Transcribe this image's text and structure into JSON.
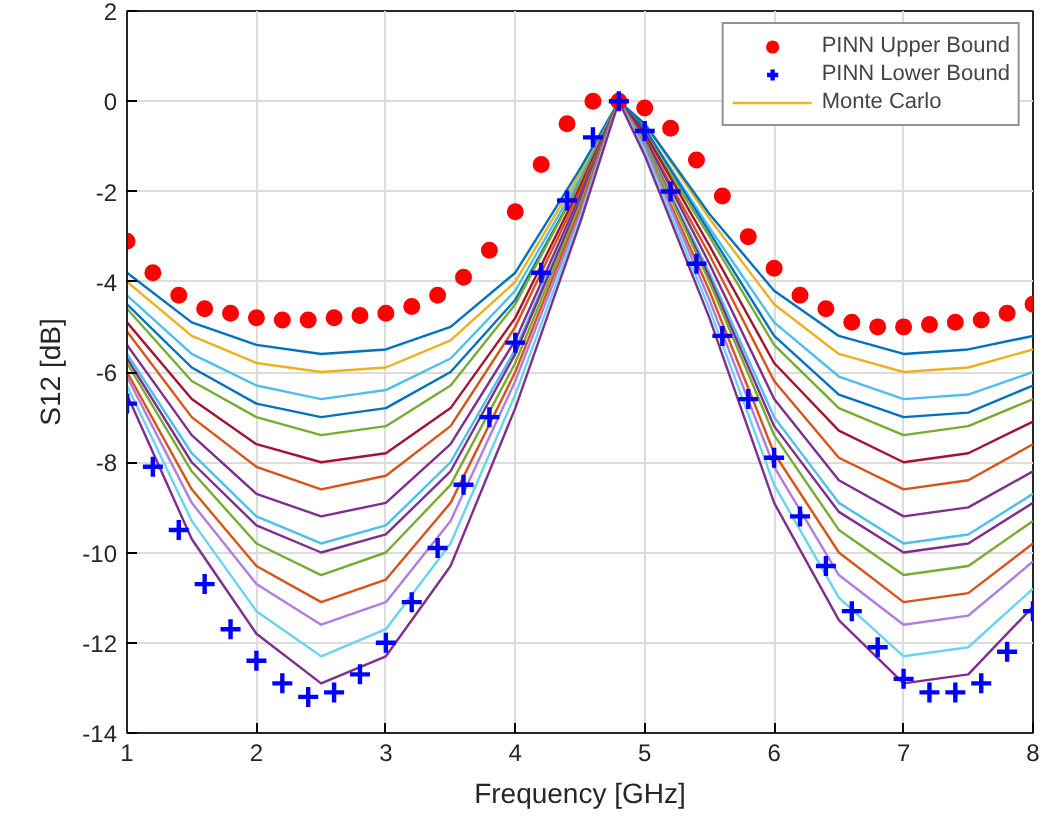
{
  "chart_data": {
    "type": "line",
    "xlabel": "Frequency [GHz]",
    "ylabel": "S12 [dB]",
    "xlim": [
      1,
      8
    ],
    "ylim": [
      -14,
      2
    ],
    "xticks": [
      1,
      2,
      3,
      4,
      5,
      6,
      7,
      8
    ],
    "yticks": [
      -14,
      -12,
      -10,
      -8,
      -6,
      -4,
      -2,
      0,
      2
    ],
    "grid": true,
    "legend": "top right",
    "marker": "none",
    "line_style": "solid",
    "x": [
      1,
      1.5,
      2,
      2.5,
      3,
      3.5,
      4,
      4.5,
      4.8,
      5,
      5.5,
      6,
      6.5,
      7,
      7.5,
      8
    ],
    "series": [
      {
        "name": "Monte Carlo",
        "color": "#edb120",
        "values": [
          -4.0,
          -5.2,
          -5.8,
          -6.0,
          -5.9,
          -5.3,
          -4.0,
          -1.6,
          0,
          -0.5,
          -2.6,
          -4.5,
          -5.6,
          -6.0,
          -5.9,
          -5.5
        ]
      },
      {
        "color": "#0072bd",
        "values": [
          -3.8,
          -4.9,
          -5.4,
          -5.6,
          -5.5,
          -5.0,
          -3.8,
          -1.5,
          0,
          -0.5,
          -2.5,
          -4.2,
          -5.2,
          -5.6,
          -5.5,
          -5.2
        ]
      },
      {
        "color": "#4dbeee",
        "values": [
          -4.3,
          -5.6,
          -6.3,
          -6.6,
          -6.4,
          -5.7,
          -4.2,
          -1.7,
          0,
          -0.6,
          -2.8,
          -4.9,
          -6.1,
          -6.6,
          -6.5,
          -6.0
        ]
      },
      {
        "color": "#0072bd",
        "values": [
          -4.5,
          -5.9,
          -6.7,
          -7.0,
          -6.8,
          -6.0,
          -4.4,
          -1.8,
          0,
          -0.6,
          -2.9,
          -5.2,
          -6.5,
          -7.0,
          -6.9,
          -6.3
        ]
      },
      {
        "color": "#77ac30",
        "values": [
          -4.6,
          -6.2,
          -7.0,
          -7.4,
          -7.2,
          -6.3,
          -4.5,
          -1.8,
          0,
          -0.7,
          -3.0,
          -5.4,
          -6.8,
          -7.4,
          -7.2,
          -6.6
        ]
      },
      {
        "color": "#a2142f",
        "values": [
          -4.9,
          -6.6,
          -7.6,
          -8.0,
          -7.8,
          -6.8,
          -4.8,
          -1.9,
          0,
          -0.7,
          -3.2,
          -5.8,
          -7.3,
          -8.0,
          -7.8,
          -7.1
        ]
      },
      {
        "color": "#d95319",
        "values": [
          -5.1,
          -7.0,
          -8.1,
          -8.6,
          -8.3,
          -7.2,
          -5.0,
          -2.0,
          0,
          -0.8,
          -3.4,
          -6.2,
          -7.9,
          -8.6,
          -8.4,
          -7.6
        ]
      },
      {
        "color": "#7e2f8e",
        "values": [
          -5.4,
          -7.4,
          -8.7,
          -9.2,
          -8.9,
          -7.6,
          -5.3,
          -2.1,
          0,
          -0.8,
          -3.6,
          -6.6,
          -8.4,
          -9.2,
          -9.0,
          -8.2
        ]
      },
      {
        "color": "#4dbeee",
        "values": [
          -5.6,
          -7.8,
          -9.2,
          -9.8,
          -9.4,
          -8.0,
          -5.5,
          -2.2,
          0,
          -0.9,
          -3.8,
          -7.0,
          -8.9,
          -9.8,
          -9.6,
          -8.7
        ]
      },
      {
        "color": "#7e2f8e",
        "values": [
          -5.7,
          -8.0,
          -9.4,
          -10.0,
          -9.6,
          -8.2,
          -5.6,
          -2.2,
          0,
          -0.9,
          -3.9,
          -7.2,
          -9.1,
          -10.0,
          -9.8,
          -8.9
        ]
      },
      {
        "color": "#77ac30",
        "values": [
          -5.8,
          -8.2,
          -9.8,
          -10.5,
          -10.0,
          -8.5,
          -5.8,
          -2.3,
          0,
          -0.9,
          -4.0,
          -7.4,
          -9.5,
          -10.5,
          -10.3,
          -9.3
        ]
      },
      {
        "color": "#d95319",
        "values": [
          -6.0,
          -8.6,
          -10.3,
          -11.1,
          -10.6,
          -8.9,
          -6.0,
          -2.4,
          0,
          -1.0,
          -4.2,
          -7.8,
          -10.0,
          -11.1,
          -10.9,
          -9.8
        ]
      },
      {
        "color": "#b07ce0",
        "values": [
          -6.1,
          -8.9,
          -10.7,
          -11.6,
          -11.1,
          -9.3,
          -6.2,
          -2.5,
          0,
          -1.0,
          -4.4,
          -8.1,
          -10.5,
          -11.6,
          -11.4,
          -10.2
        ]
      },
      {
        "color": "#6ad4f0",
        "values": [
          -6.3,
          -9.3,
          -11.3,
          -12.3,
          -11.7,
          -9.8,
          -6.5,
          -2.6,
          0,
          -1.1,
          -4.6,
          -8.5,
          -11.0,
          -12.3,
          -12.1,
          -10.8
        ]
      },
      {
        "color": "#7e2f8e",
        "values": [
          -6.5,
          -9.7,
          -11.8,
          -12.9,
          -12.3,
          -10.3,
          -6.8,
          -2.7,
          0,
          -1.2,
          -4.8,
          -8.9,
          -11.5,
          -12.9,
          -12.7,
          -11.2
        ]
      },
      {
        "name": "PINN Upper Bound",
        "type": "scatter",
        "marker": "circle",
        "color": "#ff0000",
        "x": [
          1,
          1.2,
          1.4,
          1.6,
          1.8,
          2,
          2.2,
          2.4,
          2.6,
          2.8,
          3,
          3.2,
          3.4,
          3.6,
          3.8,
          4,
          4.2,
          4.4,
          4.6,
          4.8,
          5,
          5.2,
          5.4,
          5.6,
          5.8,
          6,
          6.2,
          6.4,
          6.6,
          6.8,
          7,
          7.2,
          7.4,
          7.6,
          7.8,
          8
        ],
        "values": [
          -3.1,
          -3.8,
          -4.3,
          -4.6,
          -4.7,
          -4.8,
          -4.85,
          -4.85,
          -4.8,
          -4.75,
          -4.7,
          -4.55,
          -4.3,
          -3.9,
          -3.3,
          -2.45,
          -1.4,
          -0.5,
          0,
          0,
          -0.15,
          -0.6,
          -1.3,
          -2.1,
          -3.0,
          -3.7,
          -4.3,
          -4.6,
          -4.9,
          -5.0,
          -5.0,
          -4.95,
          -4.9,
          -4.85,
          -4.7,
          -4.5
        ]
      },
      {
        "name": "PINN Lower Bound",
        "type": "scatter",
        "marker": "cross",
        "color": "#0000ff",
        "x": [
          1,
          1.2,
          1.4,
          1.6,
          1.8,
          2,
          2.2,
          2.4,
          2.6,
          2.8,
          3,
          3.2,
          3.4,
          3.6,
          3.8,
          4,
          4.2,
          4.4,
          4.6,
          4.8,
          5,
          5.2,
          5.4,
          5.6,
          5.8,
          6,
          6.2,
          6.4,
          6.6,
          6.8,
          7,
          7.2,
          7.4,
          7.6,
          7.8,
          8
        ],
        "values": [
          -6.7,
          -8.1,
          -9.5,
          -10.7,
          -11.7,
          -12.4,
          -12.9,
          -13.2,
          -13.1,
          -12.7,
          -12.0,
          -11.1,
          -9.9,
          -8.5,
          -7.0,
          -5.35,
          -3.8,
          -2.2,
          -0.8,
          0,
          -0.66,
          -2.0,
          -3.6,
          -5.2,
          -6.6,
          -7.9,
          -9.2,
          -10.3,
          -11.3,
          -12.1,
          -12.8,
          -13.1,
          -13.1,
          -12.9,
          -12.2,
          -11.3
        ]
      }
    ]
  }
}
